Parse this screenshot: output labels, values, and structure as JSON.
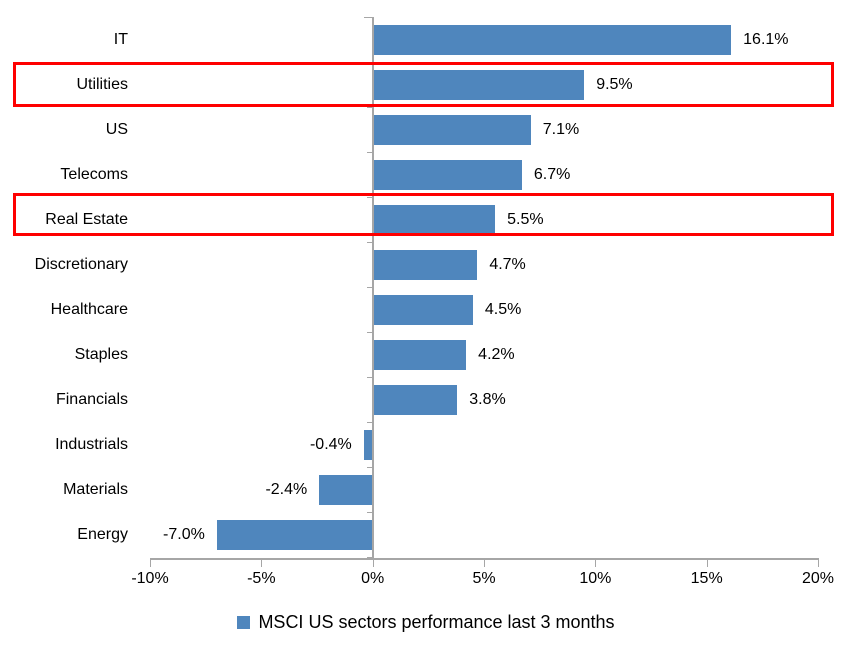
{
  "chart_data": {
    "type": "bar",
    "orientation": "horizontal",
    "title": "",
    "legend": "MSCI US sectors performance last 3 months",
    "legend_position": "bottom-center",
    "categories": [
      "IT",
      "Utilities",
      "US",
      "Telecoms",
      "Real Estate",
      "Discretionary",
      "Healthcare",
      "Staples",
      "Financials",
      "Industrials",
      "Materials",
      "Energy"
    ],
    "values": [
      16.1,
      9.5,
      7.1,
      6.7,
      5.5,
      4.7,
      4.5,
      4.2,
      3.8,
      -0.4,
      -2.4,
      -7.0
    ],
    "value_labels": [
      "16.1%",
      "9.5%",
      "7.1%",
      "6.7%",
      "5.5%",
      "4.7%",
      "4.5%",
      "4.2%",
      "3.8%",
      "-0.4%",
      "-2.4%",
      "-7.0%"
    ],
    "x_tick_labels": [
      "-10%",
      "-5%",
      "0%",
      "5%",
      "10%",
      "15%",
      "20%"
    ],
    "x_tick_values": [
      -10,
      -5,
      0,
      5,
      10,
      15,
      20
    ],
    "xlim": [
      -10,
      20
    ],
    "grid": false,
    "highlighted_categories": [
      "Utilities",
      "Real Estate"
    ],
    "colors": {
      "bar": "#4f86bd",
      "axis": "#a6a6a6",
      "highlight": "#fe0000",
      "text": "#000000"
    }
  }
}
